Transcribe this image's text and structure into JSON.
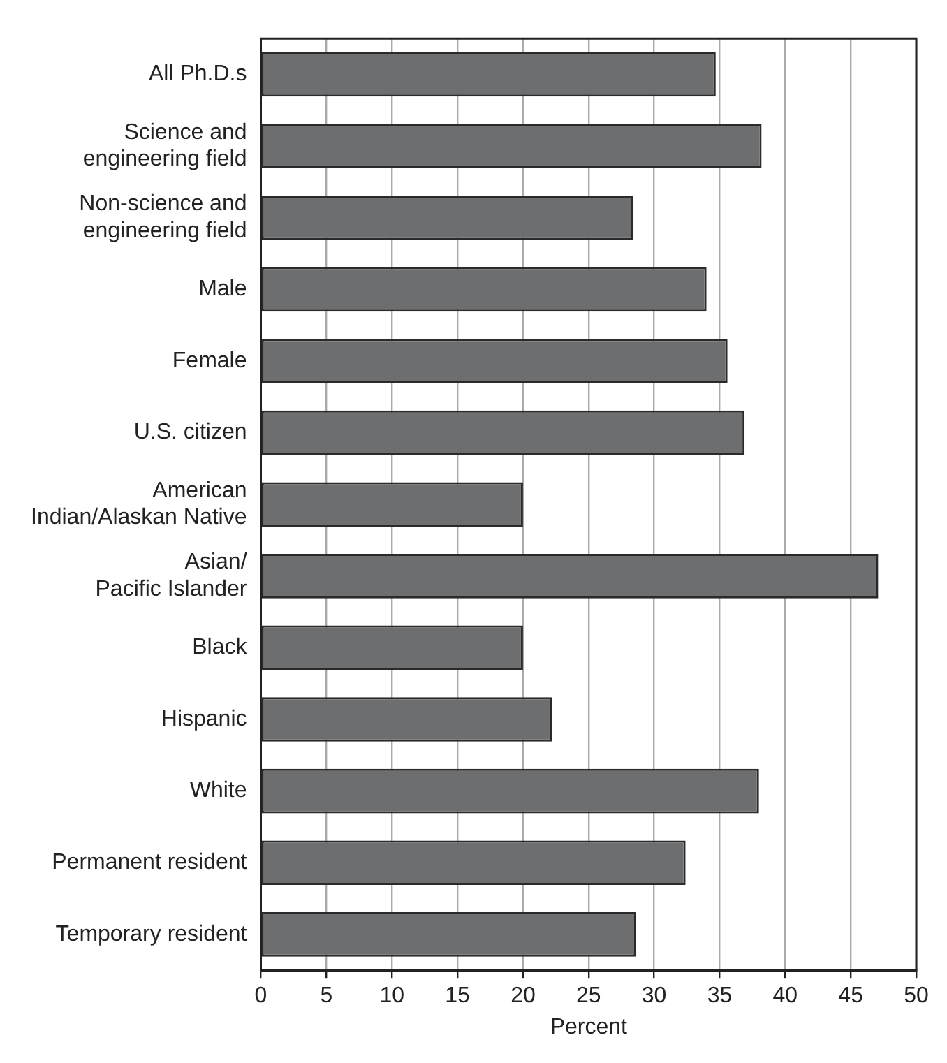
{
  "chart_data": {
    "type": "bar",
    "orientation": "horizontal",
    "xlabel": "Percent",
    "categories": [
      "All Ph.D.s",
      "Science and\nengineering field",
      "Non-science and\nengineering field",
      "Male",
      "Female",
      "U.S. citizen",
      "American\nIndian/Alaskan Native",
      "Asian/\nPacific Islander",
      "Black",
      "Hispanic",
      "White",
      "Permanent resident",
      "Temporary resident"
    ],
    "values": [
      34.7,
      38.2,
      28.4,
      34.0,
      35.6,
      36.9,
      20.0,
      47.1,
      20.0,
      22.2,
      38.0,
      32.4,
      28.6
    ],
    "color": "#6d6e70",
    "xlim": [
      0,
      50
    ],
    "xticks": [
      0,
      5,
      10,
      15,
      20,
      25,
      30,
      35,
      40,
      45,
      50
    ],
    "grid": "x"
  }
}
